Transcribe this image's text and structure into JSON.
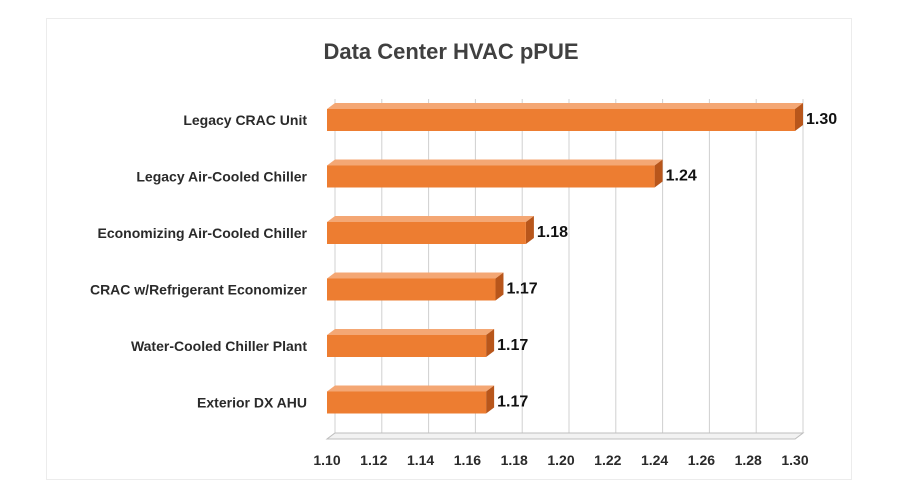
{
  "chart_data": {
    "type": "bar",
    "orientation": "horizontal",
    "title": "Data Center HVAC pPUE",
    "xlabel": "",
    "ylabel": "",
    "categories": [
      "Legacy CRAC Unit",
      "Legacy Air-Cooled Chiller",
      "Economizing Air-Cooled Chiller",
      "CRAC w/Refrigerant Economizer",
      "Water-Cooled Chiller Plant",
      "Exterior DX AHU"
    ],
    "values": [
      1.3,
      1.24,
      1.185,
      1.172,
      1.168,
      1.168
    ],
    "value_labels": [
      "1.30",
      "1.24",
      "1.18",
      "1.17",
      "1.17",
      "1.17"
    ],
    "xlim": [
      1.1,
      1.3
    ],
    "x_ticks": [
      "1.10",
      "1.12",
      "1.14",
      "1.16",
      "1.18",
      "1.20",
      "1.22",
      "1.24",
      "1.26",
      "1.28",
      "1.30"
    ],
    "grid": "vertical",
    "legend": "none",
    "bar_style": "3d",
    "colors": {
      "bar_front": "#ED7D31",
      "bar_top": "#F4A774",
      "bar_side": "#B8561B",
      "grid": "#d0d0d0",
      "floor": "#bfbfbf"
    }
  }
}
